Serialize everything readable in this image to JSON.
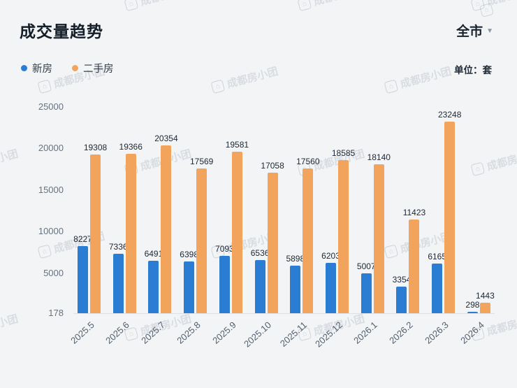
{
  "header": {
    "title": "成交量趋势",
    "region": "全市",
    "region_caret": "▼"
  },
  "legend": {
    "items": [
      {
        "label": "新房",
        "color": "#2b7cd3"
      },
      {
        "label": "二手房",
        "color": "#f2a35c"
      }
    ],
    "unit": "单位：套"
  },
  "watermark": {
    "text": "成都房小团",
    "icon": "house-logo-icon"
  },
  "chart_data": {
    "type": "bar",
    "title": "成交量趋势",
    "categories": [
      "2025.5",
      "2025.6",
      "2025.7",
      "2025.8",
      "2025.9",
      "2025.10",
      "2025.11",
      "2025.12",
      "2026.1",
      "2026.2",
      "2026.3",
      "2026.4"
    ],
    "series": [
      {
        "name": "新房",
        "color": "#2b7cd3",
        "values": [
          8227,
          7336,
          6491,
          6398,
          7093,
          6536,
          5898,
          6203,
          5007,
          3354,
          6165,
          298
        ]
      },
      {
        "name": "二手房",
        "color": "#f2a35c",
        "values": [
          19308,
          19366,
          20354,
          17569,
          19581,
          17058,
          17560,
          18585,
          18140,
          11423,
          23248,
          1443
        ]
      }
    ],
    "xlabel": "",
    "ylabel": "",
    "ylim": [
      178,
      25000
    ],
    "yticks": [
      25000,
      20000,
      15000,
      10000,
      5000,
      178
    ],
    "grid": false,
    "legend_position": "top-left",
    "value_labels": true
  }
}
